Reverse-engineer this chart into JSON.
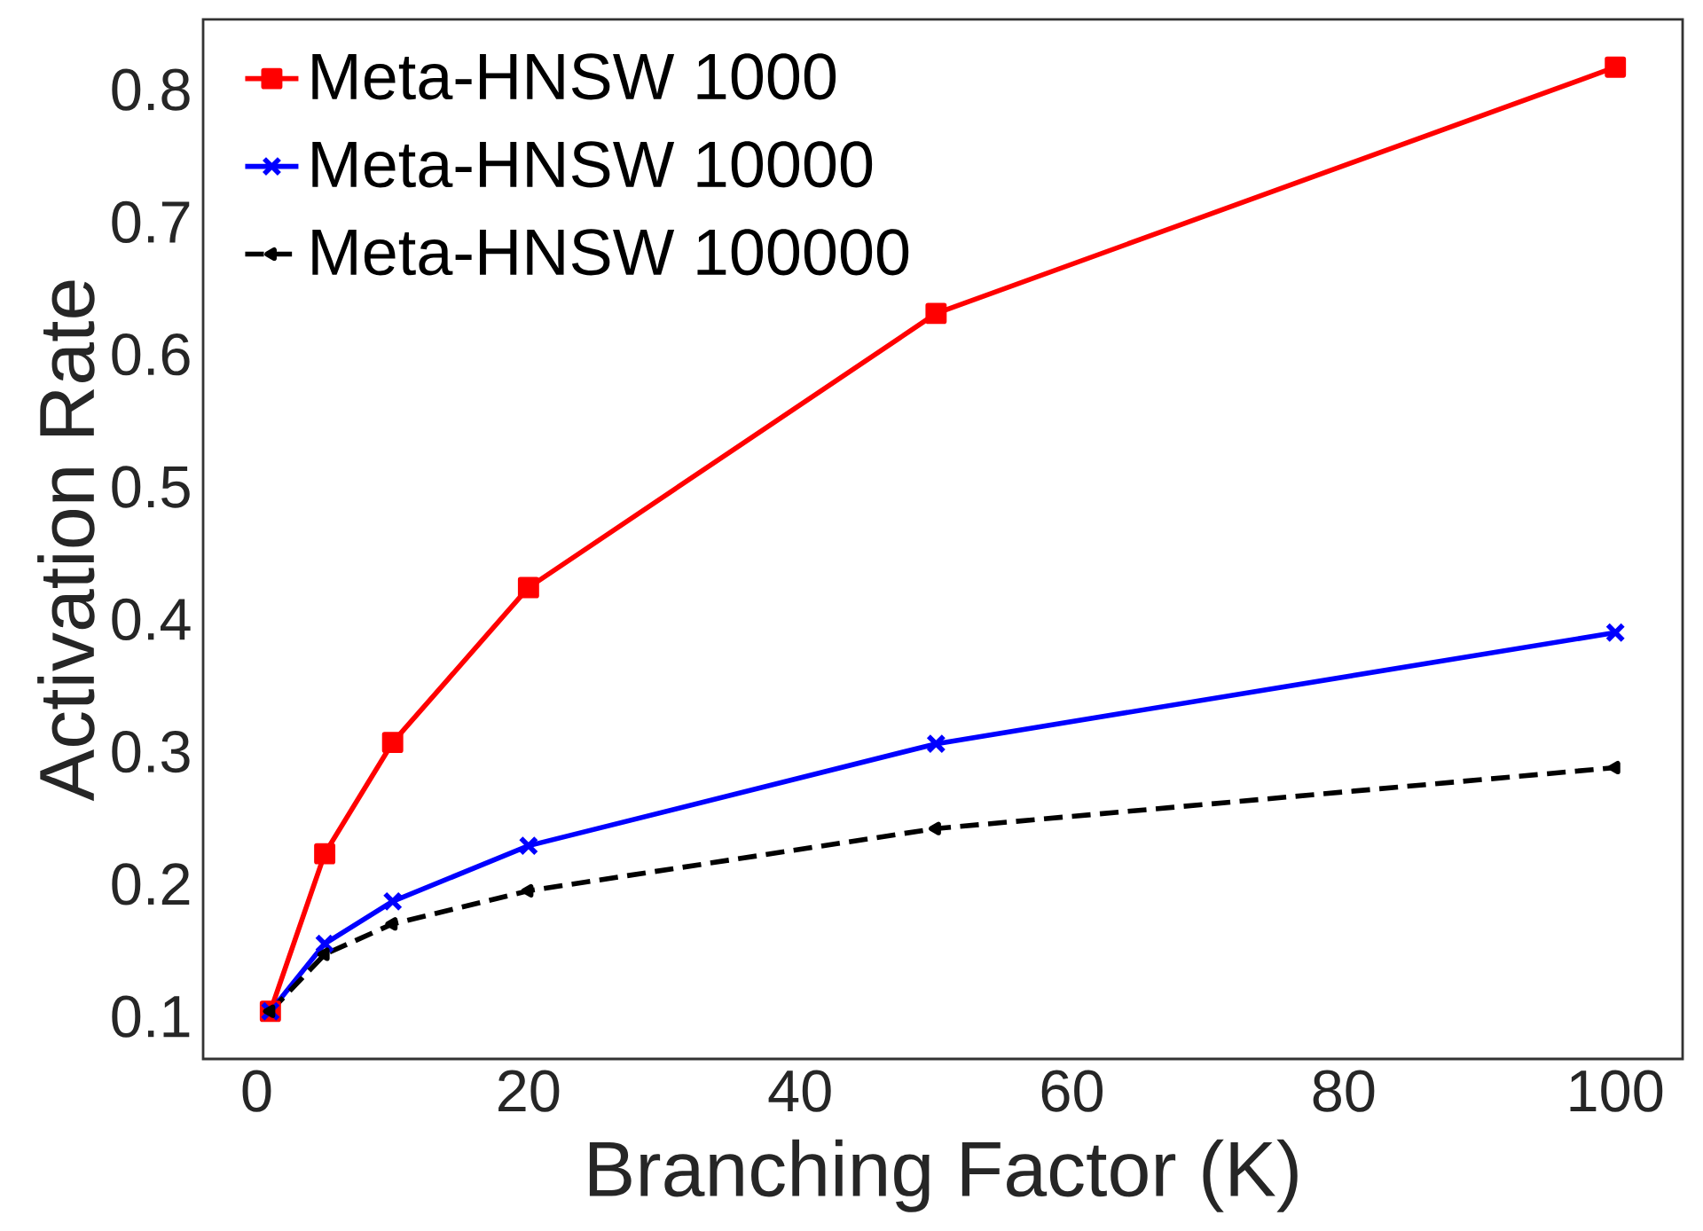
{
  "chart_data": {
    "type": "line",
    "xlabel": "Branching Factor (K)",
    "ylabel": "Activation Rate",
    "x": [
      1,
      5,
      10,
      20,
      50,
      100
    ],
    "series": [
      {
        "name": "Meta-HNSW 1000",
        "color": "#ff0000",
        "marker": "square",
        "line_style": "solid",
        "values": [
          0.104,
          0.223,
          0.307,
          0.424,
          0.631,
          0.817
        ]
      },
      {
        "name": "Meta-HNSW 10000",
        "color": "#0000ff",
        "marker": "cross",
        "line_style": "solid",
        "values": [
          0.104,
          0.155,
          0.187,
          0.229,
          0.306,
          0.39
        ]
      },
      {
        "name": "Meta-HNSW 100000",
        "color": "#000000",
        "marker": "triangle",
        "line_style": "dashed",
        "values": [
          0.104,
          0.147,
          0.17,
          0.195,
          0.242,
          0.288
        ]
      }
    ],
    "xlim": [
      -3.95,
      104.95
    ],
    "ylim": [
      0.068,
      0.853
    ],
    "xticks": [
      0,
      20,
      40,
      60,
      80,
      100
    ],
    "yticks": [
      0.1,
      0.2,
      0.3,
      0.4,
      0.5,
      0.6,
      0.7,
      0.8
    ],
    "grid": false,
    "legend": "top left"
  }
}
